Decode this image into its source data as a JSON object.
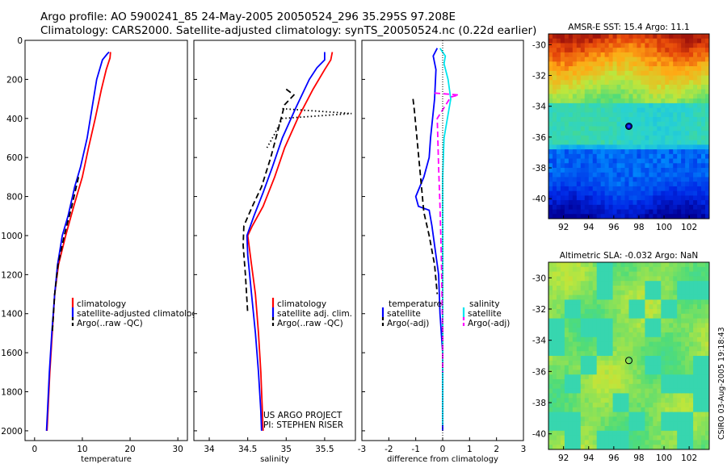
{
  "header": {
    "line1": "Argo profile: AO 5900241_85 24-May-2005 20050524_296 35.295S 97.208E",
    "line2": "Climatology: CARS2000. Satellite-adjusted climatology: synTS_20050524.nc (0.22d earlier)"
  },
  "stamp": "CSIRO 03-Aug-2005 19:18:43",
  "colors": {
    "climatology": "#ff0000",
    "satellite": "#0000ff",
    "argo": "#000000",
    "sal_satellite": "#00e5ee",
    "sal_argo": "#ff00ff"
  },
  "chart_data": [
    {
      "type": "line",
      "id": "temperature",
      "xlabel": "temperature",
      "ylabel": "",
      "xlim": [
        -2,
        32
      ],
      "ylim": [
        2050,
        0
      ],
      "ydir": "reversed",
      "xticks": [
        0,
        10,
        20,
        30
      ],
      "yticks": [
        0,
        200,
        400,
        600,
        800,
        1000,
        1200,
        1400,
        1600,
        1800,
        2000
      ],
      "legend": [
        "climatology",
        "satellite-adjusted climatology",
        "Argo(..raw -QC)"
      ],
      "series": [
        {
          "name": "climatology",
          "style": "solid",
          "color": "#ff0000",
          "points": [
            [
              15.9,
              60
            ],
            [
              15.8,
              90
            ],
            [
              15.0,
              150
            ],
            [
              14.0,
              250
            ],
            [
              12.7,
              400
            ],
            [
              11.3,
              550
            ],
            [
              10.0,
              700
            ],
            [
              8.2,
              850
            ],
            [
              6.5,
              1000
            ],
            [
              5.0,
              1150
            ],
            [
              4.2,
              1300
            ],
            [
              3.7,
              1500
            ],
            [
              3.2,
              1700
            ],
            [
              2.8,
              1900
            ],
            [
              2.6,
              2000
            ]
          ]
        },
        {
          "name": "satellite-adjusted climatology",
          "style": "solid",
          "color": "#0000ff",
          "points": [
            [
              15.6,
              60
            ],
            [
              15.2,
              70
            ],
            [
              14.2,
              100
            ],
            [
              13.0,
              200
            ],
            [
              12.0,
              350
            ],
            [
              11.0,
              500
            ],
            [
              9.6,
              650
            ],
            [
              8.4,
              750
            ],
            [
              7.0,
              900
            ],
            [
              5.8,
              1000
            ],
            [
              4.8,
              1150
            ],
            [
              4.2,
              1300
            ],
            [
              3.6,
              1500
            ],
            [
              3.1,
              1700
            ],
            [
              2.7,
              1900
            ],
            [
              2.5,
              2000
            ]
          ]
        },
        {
          "name": "Argo(..raw -QC)",
          "style": "dash",
          "color": "#000000",
          "points": [
            [
              9.2,
              700
            ],
            [
              7.8,
              850
            ],
            [
              6.2,
              1000
            ],
            [
              4.9,
              1150
            ],
            [
              4.2,
              1300
            ],
            [
              3.7,
              1500
            ]
          ]
        }
      ]
    },
    {
      "type": "line",
      "id": "salinity",
      "xlabel": "salinity",
      "ylabel": "",
      "xlim": [
        33.8,
        35.9
      ],
      "ylim": [
        2050,
        0
      ],
      "ydir": "reversed",
      "xticks": [
        34,
        34.5,
        35,
        35.5
      ],
      "yticks": [
        0,
        200,
        400,
        600,
        800,
        1000,
        1200,
        1400,
        1600,
        1800,
        2000
      ],
      "legend": [
        "climatology",
        "satellite adj. clim.",
        "Argo(..raw -QC)"
      ],
      "annotation": [
        "US ARGO PROJECT",
        "PI: STEPHEN RISER"
      ],
      "series": [
        {
          "name": "climatology",
          "style": "solid",
          "color": "#ff0000",
          "points": [
            [
              35.6,
              60
            ],
            [
              35.58,
              100
            ],
            [
              35.5,
              150
            ],
            [
              35.35,
              250
            ],
            [
              35.15,
              400
            ],
            [
              34.98,
              550
            ],
            [
              34.85,
              700
            ],
            [
              34.7,
              850
            ],
            [
              34.56,
              950
            ],
            [
              34.5,
              1000
            ],
            [
              34.55,
              1150
            ],
            [
              34.6,
              1300
            ],
            [
              34.64,
              1500
            ],
            [
              34.67,
              1700
            ],
            [
              34.69,
              1900
            ],
            [
              34.7,
              2000
            ]
          ]
        },
        {
          "name": "satellite adj. clim.",
          "style": "solid",
          "color": "#0000ff",
          "points": [
            [
              35.5,
              60
            ],
            [
              35.5,
              100
            ],
            [
              35.4,
              140
            ],
            [
              35.3,
              200
            ],
            [
              35.12,
              350
            ],
            [
              34.95,
              500
            ],
            [
              34.82,
              650
            ],
            [
              34.7,
              780
            ],
            [
              34.58,
              900
            ],
            [
              34.49,
              1000
            ],
            [
              34.5,
              1100
            ],
            [
              34.55,
              1300
            ],
            [
              34.6,
              1500
            ],
            [
              34.64,
              1700
            ],
            [
              34.67,
              1900
            ],
            [
              34.68,
              2000
            ]
          ]
        },
        {
          "name": "Argo(..raw -QC)",
          "style": "dash",
          "color": "#000000",
          "points": [
            [
              35.0,
              250
            ],
            [
              35.1,
              280
            ],
            [
              34.98,
              330
            ],
            [
              34.9,
              450
            ],
            [
              34.8,
              600
            ],
            [
              34.68,
              750
            ],
            [
              34.56,
              850
            ],
            [
              34.45,
              950
            ],
            [
              34.44,
              1050
            ],
            [
              34.47,
              1200
            ],
            [
              34.5,
              1400
            ]
          ]
        },
        {
          "name": "Argo raw",
          "style": "dot",
          "color": "#000000",
          "points": [
            [
              34.95,
              350
            ],
            [
              35.85,
              375
            ],
            [
              34.95,
              400
            ],
            [
              34.85,
              480
            ],
            [
              34.75,
              550
            ]
          ]
        }
      ]
    },
    {
      "type": "line",
      "id": "difference",
      "xlabel": "difference from climatology",
      "ylabel": "",
      "xlim": [
        -3,
        3
      ],
      "ylim": [
        2050,
        0
      ],
      "ydir": "reversed",
      "xticks": [
        -3,
        -2,
        -1,
        0,
        1,
        2,
        3
      ],
      "yticks": [
        0,
        200,
        400,
        600,
        800,
        1000,
        1200,
        1400,
        1600,
        1800,
        2000
      ],
      "legend_left_title": "temperature",
      "legend_left": [
        "satellite",
        "Argo(-adj)"
      ],
      "legend_right_title": "salinity",
      "legend_right": [
        "satellite",
        "Argo(-adj)"
      ],
      "series": [
        {
          "name": "temperature satellite",
          "style": "solid",
          "color": "#0000ff",
          "points": [
            [
              -0.2,
              40
            ],
            [
              -0.35,
              80
            ],
            [
              -0.25,
              150
            ],
            [
              -0.3,
              300
            ],
            [
              -0.45,
              500
            ],
            [
              -0.5,
              600
            ],
            [
              -0.7,
              700
            ],
            [
              -1.0,
              800
            ],
            [
              -0.9,
              850
            ],
            [
              -0.5,
              870
            ],
            [
              -0.4,
              950
            ],
            [
              -0.3,
              1050
            ],
            [
              -0.15,
              1200
            ],
            [
              -0.1,
              1400
            ],
            [
              0,
              1600
            ],
            [
              0,
              1800
            ],
            [
              0,
              2000
            ]
          ]
        },
        {
          "name": "temperature Argo(-adj)",
          "style": "dash",
          "color": "#000000",
          "points": [
            [
              -1.1,
              300
            ],
            [
              -1.05,
              360
            ],
            [
              -0.7,
              880
            ],
            [
              -0.5,
              1000
            ],
            [
              -0.3,
              1150
            ],
            [
              -0.2,
              1300
            ]
          ]
        },
        {
          "name": "salinity satellite",
          "style": "solid",
          "color": "#00e5ee",
          "points": [
            [
              -0.1,
              40
            ],
            [
              0.1,
              80
            ],
            [
              0.05,
              120
            ],
            [
              0.2,
              200
            ],
            [
              0.3,
              300
            ],
            [
              0.05,
              500
            ],
            [
              0,
              700
            ],
            [
              0,
              900
            ],
            [
              0,
              1100
            ],
            [
              0,
              1300
            ],
            [
              0,
              1500
            ],
            [
              0,
              1700
            ],
            [
              0,
              1900
            ],
            [
              0,
              1970
            ]
          ]
        },
        {
          "name": "salinity Argo(-adj)",
          "style": "dash",
          "color": "#ff00ff",
          "points": [
            [
              -0.3,
              270
            ],
            [
              0.6,
              280
            ],
            [
              0.3,
              290
            ],
            [
              -0.2,
              400
            ],
            [
              -0.15,
              650
            ],
            [
              -0.1,
              850
            ],
            [
              -0.05,
              1100
            ],
            [
              0,
              1500
            ],
            [
              0,
              1700
            ]
          ]
        }
      ]
    },
    {
      "type": "heatmap",
      "id": "sst-map",
      "title": "AMSR-E SST: 15.4 Argo: 11.1",
      "xlim": [
        90.8,
        103.6
      ],
      "ylim": [
        -41.3,
        -29.3
      ],
      "xticks": [
        92,
        94,
        96,
        98,
        100,
        102
      ],
      "yticks": [
        -30,
        -32,
        -34,
        -36,
        -38,
        -40
      ],
      "marker": {
        "lon": 97.2,
        "lat": -35.3,
        "style": "filled"
      }
    },
    {
      "type": "heatmap",
      "id": "sla-map",
      "title": "Altimetric SLA: -0.032 Argo: NaN",
      "xlim": [
        90.8,
        103.6
      ],
      "ylim": [
        -41.0,
        -29.0
      ],
      "xticks": [
        92,
        94,
        96,
        98,
        100,
        102
      ],
      "yticks": [
        -30,
        -32,
        -34,
        -36,
        -38,
        -40
      ],
      "marker": {
        "lon": 97.2,
        "lat": -35.3,
        "style": "open"
      }
    }
  ]
}
